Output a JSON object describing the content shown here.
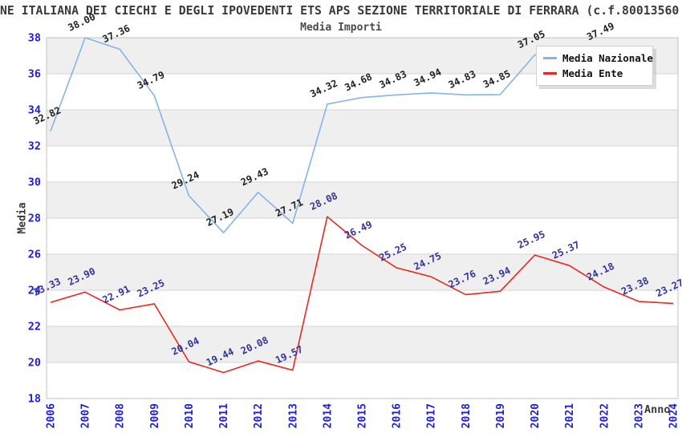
{
  "header": {
    "title": "NE ITALIANA DEI CIECHI E DEGLI IPOVEDENTI ETS APS SEZIONE TERRITORIALE DI FERRARA (c.f.80013560"
  },
  "chart_data": {
    "type": "line",
    "title": "Media Importi",
    "xlabel": "Anno",
    "ylabel": "Media",
    "ylim": [
      18,
      38
    ],
    "ytick_step": 2,
    "grid": "horizontal-bands-alternating",
    "legend_position": "top-right-inside",
    "categories": [
      2006,
      2007,
      2008,
      2009,
      2010,
      2011,
      2012,
      2013,
      2014,
      2015,
      2016,
      2017,
      2018,
      2019,
      2020,
      2021,
      2022,
      2023,
      2024
    ],
    "series": [
      {
        "name": "Media Nazionale",
        "color": "#85b4e6",
        "label_color": "#1f1f1f",
        "values": [
          32.82,
          38.0,
          37.36,
          34.79,
          29.24,
          27.19,
          29.43,
          27.71,
          34.32,
          34.68,
          34.83,
          34.94,
          34.83,
          34.85,
          37.05,
          null,
          37.49,
          null,
          null
        ]
      },
      {
        "name": "Media Ente",
        "color": "#e8291f",
        "label_color": "#33339c",
        "values": [
          23.33,
          23.9,
          22.91,
          23.25,
          20.04,
          19.44,
          20.08,
          19.57,
          28.08,
          26.49,
          25.25,
          24.75,
          23.76,
          23.94,
          25.95,
          25.37,
          24.18,
          23.38,
          23.27
        ]
      }
    ]
  },
  "colors": {
    "tick": "#2020cc",
    "gridline": "#d6d6d6",
    "plot_border": "#c2c2c2",
    "band_gray": "#efefef",
    "band_white": "#ffffff"
  }
}
